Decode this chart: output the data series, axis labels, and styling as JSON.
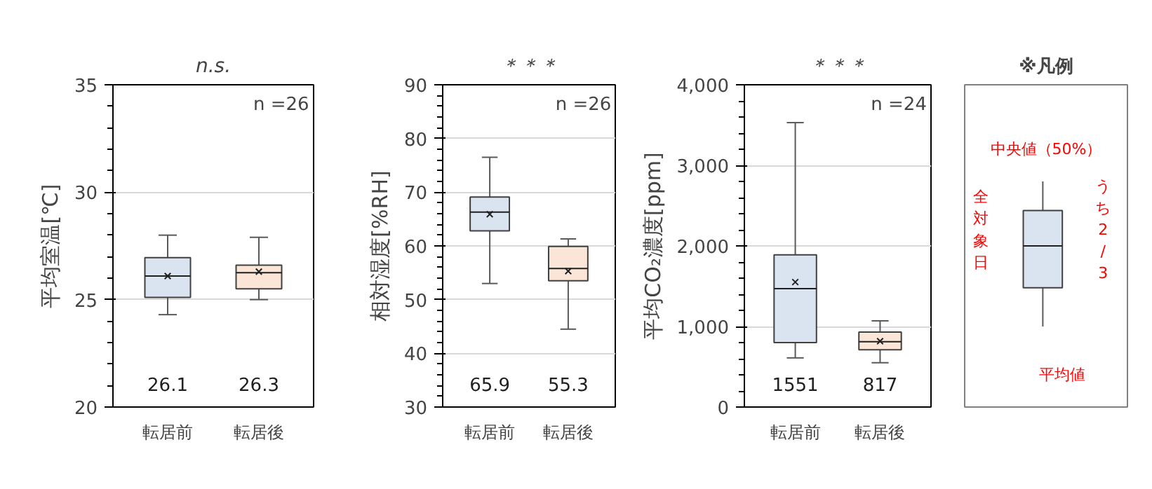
{
  "chart_data": [
    {
      "type": "box",
      "title": "n.s.",
      "ylabel": "平均室温[℃]",
      "categories": [
        "転居前",
        "転居後"
      ],
      "colors": [
        "#dae3f0",
        "#fbe5d6"
      ],
      "boxes": [
        {
          "low": 24.3,
          "q1": 25.1,
          "median": 26.1,
          "q3": 26.95,
          "high": 28.0,
          "mean": 26.1
        },
        {
          "low": 25.0,
          "q1": 25.5,
          "median": 26.25,
          "q3": 26.6,
          "high": 27.9,
          "mean": 26.3
        }
      ],
      "ylim": [
        20,
        35
      ],
      "yticks": [
        20,
        25,
        30,
        35
      ],
      "grid": "y",
      "annotations": [
        "n =26",
        "26.1",
        "26.3"
      ]
    },
    {
      "type": "box",
      "title": "＊＊＊",
      "ylabel": "相対湿度[%RH]",
      "categories": [
        "転居前",
        "転居後"
      ],
      "colors": [
        "#dae3f0",
        "#fbe5d6"
      ],
      "boxes": [
        {
          "low": 53.0,
          "q1": 62.8,
          "median": 66.3,
          "q3": 69.1,
          "high": 76.5,
          "mean": 65.9
        },
        {
          "low": 44.5,
          "q1": 53.5,
          "median": 55.8,
          "q3": 59.9,
          "high": 61.3,
          "mean": 55.3
        }
      ],
      "ylim": [
        30,
        90
      ],
      "yticks": [
        30,
        40,
        50,
        60,
        70,
        80,
        90
      ],
      "grid": "y",
      "annotations": [
        "n =26",
        "65.9",
        "55.3"
      ]
    },
    {
      "type": "box",
      "title": "＊＊＊",
      "ylabel": "平均CO₂濃度[ppm]",
      "categories": [
        "転居前",
        "転居後"
      ],
      "colors": [
        "#dae3f0",
        "#fbe5d6"
      ],
      "boxes": [
        {
          "low": 610,
          "q1": 800,
          "median": 1470,
          "q3": 1890,
          "high": 3530,
          "mean": 1551
        },
        {
          "low": 550,
          "q1": 710,
          "median": 810,
          "q3": 930,
          "high": 1070,
          "mean": 817
        }
      ],
      "ylim": [
        0,
        4000
      ],
      "yticks": [
        0,
        {
          "value": 1000,
          "label": "1,000"
        },
        {
          "value": 2000,
          "label": "2,000"
        },
        {
          "value": 3000,
          "label": "3,000"
        },
        {
          "value": 4000,
          "label": "4,000"
        }
      ],
      "grid": "y",
      "annotations": [
        "n =24",
        "1551",
        "817"
      ]
    },
    {
      "type": "other",
      "title": "※凡例",
      "annotations": [
        "中央値（50%）",
        "全対象日",
        "うち2/3",
        "平均値"
      ]
    }
  ]
}
